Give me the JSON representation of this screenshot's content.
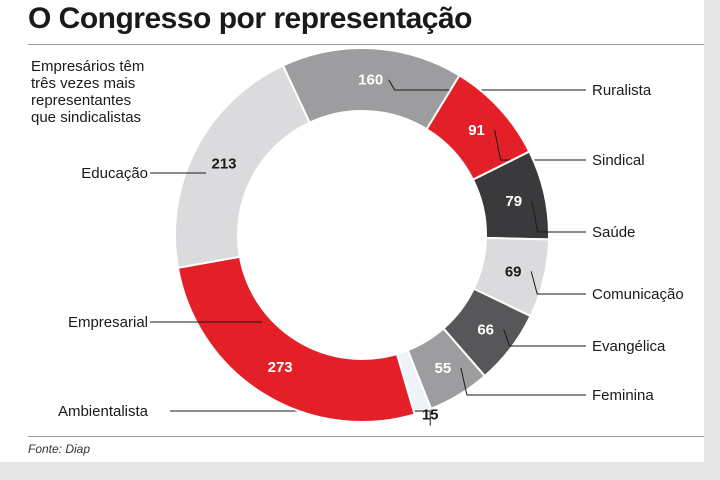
{
  "title": "O Congresso por representação",
  "subtitle_lines": [
    "Empresários têm",
    "três vezes mais",
    "representantes",
    "que sindicalistas"
  ],
  "source": "Fonte: Diap",
  "chart_data": {
    "type": "pie",
    "donut": true,
    "slices": [
      {
        "label": "Ruralista",
        "value": 160,
        "color": "#9d9d9f",
        "value_color": "#ffffff"
      },
      {
        "label": "Sindical",
        "value": 91,
        "color": "#e32028",
        "value_color": "#ffffff"
      },
      {
        "label": "Saúde",
        "value": 79,
        "color": "#3a3a3c",
        "value_color": "#ffffff"
      },
      {
        "label": "Comunicação",
        "value": 69,
        "color": "#dbdbdd",
        "value_color": "#1a1a1a"
      },
      {
        "label": "Evangélica",
        "value": 66,
        "color": "#57575a",
        "value_color": "#ffffff"
      },
      {
        "label": "Feminina",
        "value": 55,
        "color": "#9d9d9f",
        "value_color": "#ffffff"
      },
      {
        "label": "Ambientalista",
        "value": 15,
        "color": "#eef3f7",
        "value_color": "#1a1a1a"
      },
      {
        "label": "Empresarial",
        "value": 273,
        "color": "#e32028",
        "value_color": "#ffffff"
      },
      {
        "label": "Educação",
        "value": 213,
        "color": "#dbdbdd",
        "value_color": "#1a1a1a"
      }
    ]
  }
}
